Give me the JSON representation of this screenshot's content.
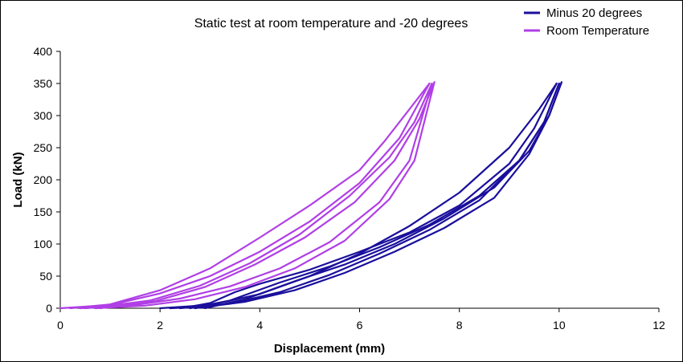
{
  "chart_data": {
    "type": "line",
    "title": "Static test at room temperature and -20 degrees",
    "xlabel": "Displacement (mm)",
    "ylabel": "Load (kN)",
    "xlim": [
      0,
      12
    ],
    "ylim": [
      0,
      400
    ],
    "xticks": [
      "0",
      "2",
      "4",
      "6",
      "8",
      "10",
      "12"
    ],
    "yticks": [
      "0",
      "50",
      "100",
      "150",
      "200",
      "250",
      "300",
      "350",
      "400"
    ],
    "grid": false,
    "legend_position": "top-right",
    "series": [
      {
        "name": "Minus 20 degrees",
        "color": "#1a0f9c",
        "loops": [
          {
            "loading": [
              [
                2.0,
                0
              ],
              [
                3.0,
                5
              ],
              [
                4.0,
                22
              ],
              [
                5.0,
                50
              ],
              [
                6.0,
                85
              ],
              [
                7.0,
                128
              ],
              [
                8.0,
                180
              ],
              [
                9.0,
                250
              ],
              [
                9.6,
                310
              ],
              [
                9.95,
                350
              ]
            ],
            "unloading": [
              [
                9.95,
                350
              ],
              [
                9.5,
                280
              ],
              [
                9.0,
                225
              ],
              [
                8.0,
                160
              ],
              [
                7.0,
                118
              ],
              [
                6.0,
                88
              ],
              [
                5.0,
                60
              ],
              [
                4.0,
                38
              ],
              [
                3.5,
                25
              ],
              [
                3.0,
                8
              ],
              [
                2.5,
                1
              ],
              [
                2.2,
                0
              ]
            ]
          },
          {
            "loading": [
              [
                2.4,
                0
              ],
              [
                3.4,
                7
              ],
              [
                4.4,
                25
              ],
              [
                5.4,
                52
              ],
              [
                6.4,
                85
              ],
              [
                7.4,
                122
              ],
              [
                8.4,
                168
              ],
              [
                9.2,
                230
              ],
              [
                9.7,
                290
              ],
              [
                10.0,
                350
              ]
            ],
            "unloading": [
              [
                10.0,
                350
              ],
              [
                9.7,
                290
              ],
              [
                9.2,
                230
              ],
              [
                8.4,
                175
              ],
              [
                7.4,
                130
              ],
              [
                6.4,
                95
              ],
              [
                5.4,
                65
              ],
              [
                4.4,
                40
              ],
              [
                3.4,
                12
              ],
              [
                2.6,
                0
              ]
            ]
          },
          {
            "loading": [
              [
                2.7,
                0
              ],
              [
                3.7,
                10
              ],
              [
                4.7,
                28
              ],
              [
                5.7,
                55
              ],
              [
                6.7,
                88
              ],
              [
                7.7,
                125
              ],
              [
                8.7,
                172
              ],
              [
                9.4,
                240
              ],
              [
                9.8,
                300
              ],
              [
                10.05,
                352
              ]
            ],
            "unloading": [
              [
                10.05,
                352
              ],
              [
                9.8,
                300
              ],
              [
                9.4,
                245
              ],
              [
                8.7,
                188
              ],
              [
                7.7,
                140
              ],
              [
                6.7,
                100
              ],
              [
                5.7,
                68
              ],
              [
                4.7,
                42
              ],
              [
                3.7,
                14
              ],
              [
                2.9,
                0
              ]
            ]
          }
        ]
      },
      {
        "name": "Room Temperature",
        "color": "#b03fe6",
        "loops": [
          {
            "loading": [
              [
                0.0,
                0
              ],
              [
                1.0,
                5
              ],
              [
                2.0,
                23
              ],
              [
                3.0,
                50
              ],
              [
                4.0,
                88
              ],
              [
                5.0,
                135
              ],
              [
                6.0,
                195
              ],
              [
                6.8,
                265
              ],
              [
                7.4,
                350
              ]
            ],
            "unloading": [
              [
                7.4,
                350
              ],
              [
                7.0,
                310
              ],
              [
                6.5,
                260
              ],
              [
                6.0,
                215
              ],
              [
                5.0,
                160
              ],
              [
                4.0,
                110
              ],
              [
                3.0,
                62
              ],
              [
                2.0,
                28
              ],
              [
                1.0,
                6
              ],
              [
                0.2,
                0
              ]
            ]
          },
          {
            "loading": [
              [
                0.4,
                0
              ],
              [
                1.4,
                4
              ],
              [
                2.4,
                15
              ],
              [
                3.4,
                34
              ],
              [
                4.4,
                62
              ],
              [
                5.4,
                103
              ],
              [
                6.4,
                165
              ],
              [
                7.0,
                230
              ],
              [
                7.45,
                350
              ]
            ],
            "unloading": [
              [
                7.45,
                350
              ],
              [
                7.1,
                290
              ],
              [
                6.6,
                235
              ],
              [
                5.8,
                175
              ],
              [
                4.8,
                115
              ],
              [
                3.8,
                70
              ],
              [
                2.8,
                35
              ],
              [
                1.8,
                12
              ],
              [
                0.8,
                2
              ],
              [
                0.5,
                0
              ]
            ]
          },
          {
            "loading": [
              [
                0.7,
                0
              ],
              [
                1.7,
                4
              ],
              [
                2.7,
                14
              ],
              [
                3.7,
                33
              ],
              [
                4.7,
                62
              ],
              [
                5.7,
                105
              ],
              [
                6.6,
                170
              ],
              [
                7.1,
                230
              ],
              [
                7.5,
                352
              ]
            ],
            "unloading": [
              [
                7.5,
                352
              ],
              [
                7.2,
                295
              ],
              [
                6.7,
                230
              ],
              [
                5.9,
                165
              ],
              [
                4.9,
                110
              ],
              [
                3.9,
                68
              ],
              [
                2.9,
                33
              ],
              [
                1.9,
                11
              ],
              [
                1.0,
                2
              ],
              [
                0.8,
                0
              ]
            ]
          }
        ]
      }
    ]
  }
}
